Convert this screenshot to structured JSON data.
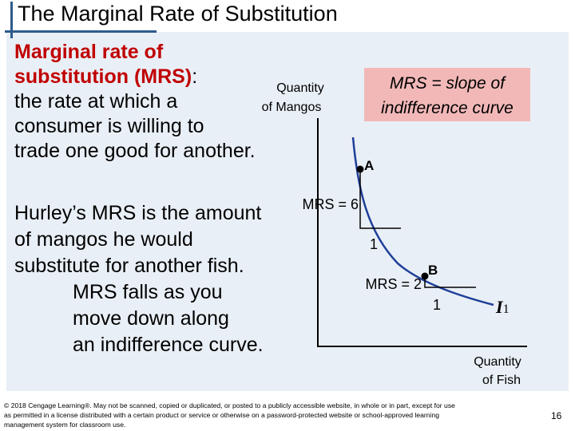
{
  "slide": {
    "title": "The Marginal Rate of Substitution",
    "page_number": "16"
  },
  "definition": {
    "term": "Marginal rate of substitution (MRS)",
    "colon": ":",
    "line1_term": "Marginal rate of",
    "line2_term": "substitution (MRS)",
    "line3": "the rate at which a",
    "line4": "consumer is willing to",
    "line5": "trade one good for another."
  },
  "body": {
    "line1": "Hurley’s MRS is the amount",
    "line2": "of mangos he would",
    "line3": "substitute for another fish.",
    "line4": "MRS falls as you",
    "line5": "move down along",
    "line6": "an indifference curve."
  },
  "callout": {
    "line1": "MRS = slope of",
    "line2": "indifference curve"
  },
  "diagram": {
    "y_axis_label_line1": "Quantity",
    "y_axis_label_line2": "of Mangos",
    "x_axis_label_line1": "Quantity",
    "x_axis_label_line2": "of Fish",
    "curve_label": "I",
    "curve_subscript": "1",
    "point_a_label": "A",
    "point_b_label": "B",
    "mrs_a_label": "MRS = 6",
    "mrs_b_label": "MRS = 2",
    "run_a_label": "1",
    "run_b_label": "1"
  },
  "footer": {
    "copyright_line1": "© 2018 Cengage Learning®. May not be scanned, copied or duplicated, or posted to a publicly accessible website, in whole or in part, except for use",
    "copyright_line2": "as permitted in a license distributed with a certain product or service or otherwise on a password-protected website or school-approved learning",
    "copyright_line3": "management system for classroom use."
  },
  "colors": {
    "accent_bar": "#2f5b8c",
    "term": "#c00000",
    "panel": "#e9eff6",
    "callout": "#f2b8b8",
    "curve": "#1f3f99"
  }
}
